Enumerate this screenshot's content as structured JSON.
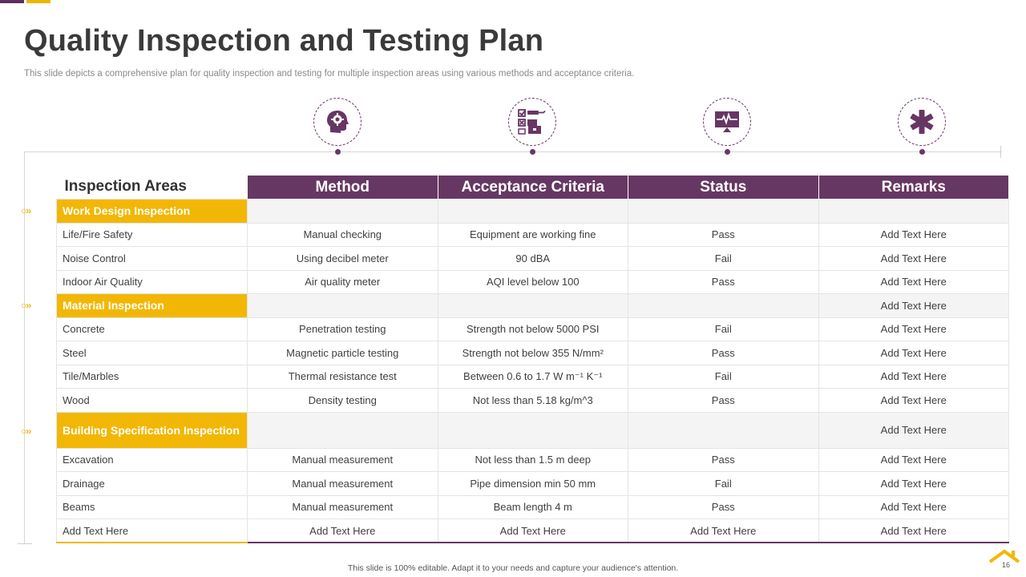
{
  "slide": {
    "title": "Quality Inspection and Testing Plan",
    "subtitle": "This slide depicts a comprehensive plan for quality inspection and testing for multiple inspection areas using various methods  and acceptance criteria.",
    "footer": "This slide is 100% editable.  Adapt it to your needs and capture your audience's attention.",
    "page_number": "16"
  },
  "icons": [
    "head-gear-icon",
    "checklist-icon",
    "monitor-pulse-icon",
    "asterisk-icon"
  ],
  "colors": {
    "purple": "#673763",
    "yellow": "#f2b705",
    "text": "#3f3f3f"
  },
  "table": {
    "headers": [
      "Inspection Areas",
      "Method",
      "Acceptance Criteria",
      "Status",
      "Remarks"
    ],
    "rows": [
      {
        "cells": [
          "Work Design Inspection",
          "",
          "",
          "",
          ""
        ]
      },
      {
        "cells": [
          "Life/Fire Safety",
          "Manual checking",
          "Equipment are working fine",
          "Pass",
          "Add Text Here"
        ]
      },
      {
        "cells": [
          "Noise Control",
          "Using decibel meter",
          "90 dBA",
          "Fail",
          "Add Text Here"
        ]
      },
      {
        "cells": [
          "Indoor Air Quality",
          "Air quality meter",
          "AQI level  below 100",
          "Pass",
          "Add Text Here"
        ]
      },
      {
        "cells": [
          "Material Inspection",
          "",
          "",
          "",
          "Add Text Here"
        ]
      },
      {
        "cells": [
          "Concrete",
          "Penetration testing",
          "Strength not below 5000 PSI",
          "Fail",
          "Add Text Here"
        ]
      },
      {
        "cells": [
          "Steel",
          "Magnetic particle testing",
          "Strength not below 355 N/mm²",
          "Pass",
          "Add Text Here"
        ]
      },
      {
        "cells": [
          "Tile/Marbles",
          "Thermal resistance test",
          "Between 0.6 to 1.7 W m⁻¹ K⁻¹",
          "Fail",
          "Add Text Here"
        ]
      },
      {
        "cells": [
          "Wood",
          "Density testing",
          "Not less than 5.18 kg/m^3",
          "Pass",
          "Add Text Here"
        ]
      },
      {
        "cells": [
          "Building Specification Inspection",
          "",
          "",
          "",
          "Add Text Here"
        ]
      },
      {
        "cells": [
          "Excavation",
          "Manual measurement",
          "Not less than 1.5 m deep",
          "Pass",
          "Add Text Here"
        ]
      },
      {
        "cells": [
          "Drainage",
          "Manual measurement",
          "Pipe dimension min 50 mm",
          "Fail",
          "Add Text Here"
        ]
      },
      {
        "cells": [
          "Beams",
          "Manual measurement",
          "Beam length 4 m",
          "Pass",
          "Add Text Here"
        ]
      },
      {
        "cells": [
          "Add Text Here",
          "Add Text Here",
          "Add Text Here",
          "Add Text Here",
          "Add Text Here"
        ]
      }
    ]
  }
}
